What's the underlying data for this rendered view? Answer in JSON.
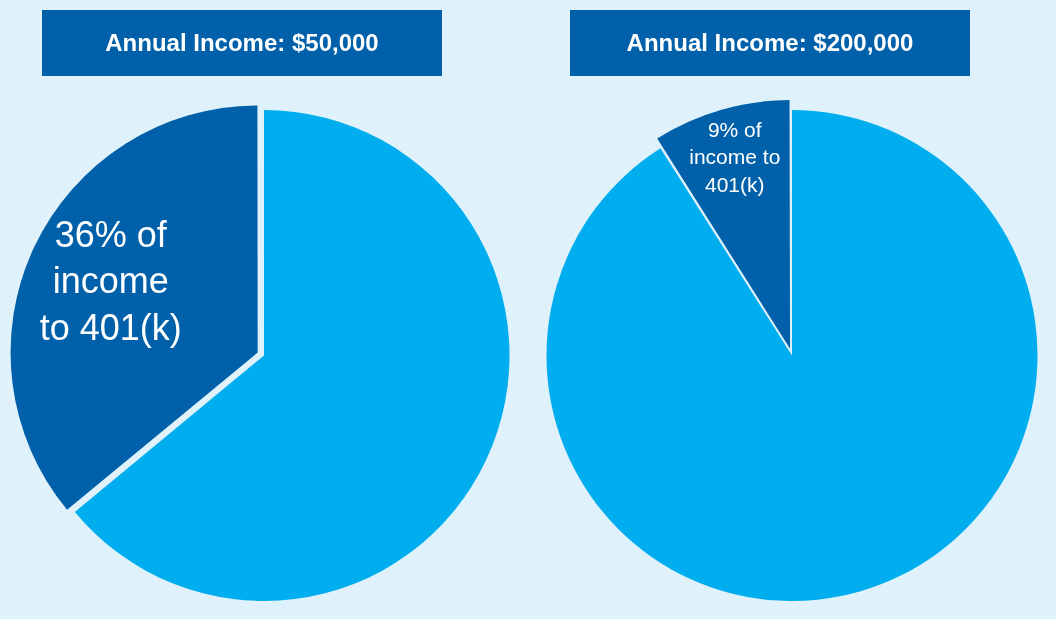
{
  "chart_data": [
    {
      "type": "pie",
      "title": "Annual Income: $50,000",
      "categories": [
        null,
        "36% of income to 401(k)"
      ],
      "values": [
        64,
        36
      ],
      "colors": [
        "#00aeef",
        "#0060a9"
      ]
    },
    {
      "type": "pie",
      "title": "Annual Income: $200,000",
      "categories": [
        null,
        "9% of income to 401(k)"
      ],
      "values": [
        91,
        9
      ],
      "colors": [
        "#00aeef",
        "#0060a9"
      ]
    }
  ]
}
